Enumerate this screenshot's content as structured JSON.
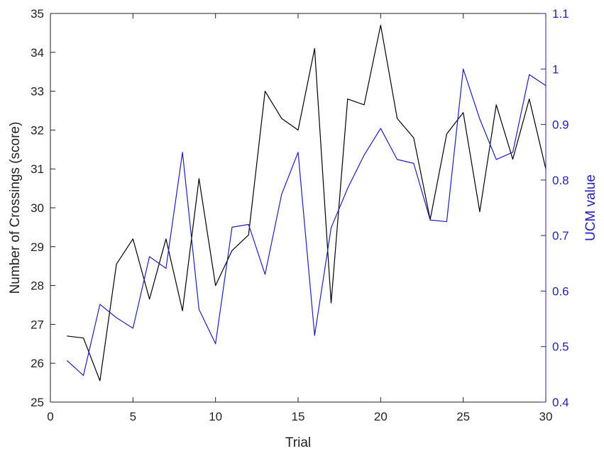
{
  "chart_data": {
    "type": "line",
    "xlabel": "Trial",
    "ylabel_left": "Number of Crossings (score)",
    "ylabel_right": "UCM value",
    "xlim": [
      0,
      30
    ],
    "ylim_left": [
      25,
      35
    ],
    "ylim_right": [
      0.4,
      1.1
    ],
    "x_ticks": [
      0,
      5,
      10,
      15,
      20,
      25,
      30
    ],
    "y_ticks_left": [
      25,
      26,
      27,
      28,
      29,
      30,
      31,
      32,
      33,
      34,
      35
    ],
    "y_ticks_right": [
      0.4,
      0.5,
      0.6,
      0.7,
      0.8,
      0.9,
      1,
      1.1
    ],
    "y_tick_labels_right": [
      "0.4",
      "0.5",
      "0.6",
      "0.7",
      "0.8",
      "0.9",
      "1",
      "1.1"
    ],
    "grid": false,
    "x": [
      1,
      2,
      3,
      4,
      5,
      6,
      7,
      8,
      9,
      10,
      11,
      12,
      13,
      14,
      15,
      16,
      17,
      18,
      19,
      20,
      21,
      22,
      23,
      24,
      25,
      26,
      27,
      28,
      29,
      30
    ],
    "series": [
      {
        "axis": "left",
        "color": "#000000",
        "values": [
          26.7,
          26.65,
          25.55,
          28.55,
          29.2,
          27.65,
          29.2,
          27.35,
          30.75,
          28.0,
          28.9,
          29.3,
          33.0,
          32.3,
          32.0,
          34.1,
          27.55,
          32.8,
          32.65,
          34.7,
          32.3,
          31.8,
          29.7,
          31.9,
          32.45,
          29.9,
          32.65,
          31.25,
          32.8,
          31.0
        ]
      },
      {
        "axis": "right",
        "color": "#1f1fb4",
        "values": [
          0.475,
          0.448,
          0.576,
          0.552,
          0.533,
          0.662,
          0.641,
          0.85,
          0.567,
          0.505,
          0.715,
          0.72,
          0.63,
          0.774,
          0.85,
          0.52,
          0.714,
          0.785,
          0.845,
          0.893,
          0.837,
          0.83,
          0.728,
          0.725,
          1.0,
          0.91,
          0.837,
          0.85,
          0.99,
          0.97
        ]
      }
    ]
  }
}
